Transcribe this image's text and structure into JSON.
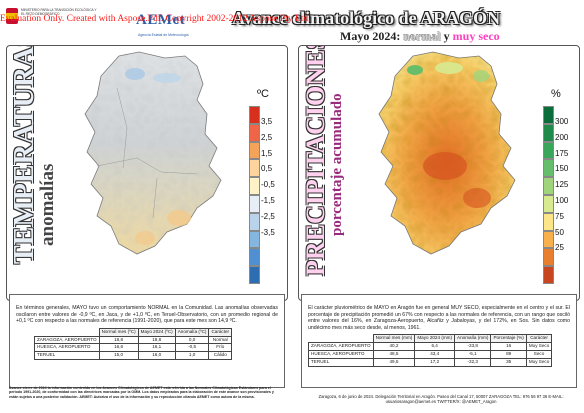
{
  "header": {
    "ministry": "MINISTERIO PARA LA TRANSICIÓN ECOLÓGICA Y EL RETO DEMOGRÁFICO",
    "aemet_logo": "AEMet",
    "aemet_subtitle": "Agencia Estatal de Meteorología",
    "watermark": "Evaluation Only. Created with Aspose.Pdf. Copyright 2002-2012 Aspose Pty Ltd.",
    "title": "Avance climatológico de ARAGÓN",
    "subtitle_prefix": "Mayo 2024:",
    "subtitle_normal": "normal",
    "subtitle_y": "y",
    "subtitle_dry": "muy seco"
  },
  "temperature": {
    "title_big": "TEMPERATURAS",
    "title_small": "anomalías",
    "unit": "ºC",
    "legend_ticks": [
      "3,5",
      "2,5",
      "1,5",
      "0,5",
      "-0,5",
      "-1,5",
      "-2,5",
      "-3,5"
    ],
    "legend_colors": [
      "#d7301f",
      "#ef6548",
      "#f4a35b",
      "#fdd49e",
      "#fff2c6",
      "#e7eef5",
      "#b9d4ea",
      "#85b6e0",
      "#4f8fd2",
      "#2f6db3"
    ],
    "paragraph": "En términos generales, MAYO tuvo un comportamiento NORMAL en la Comunidad. Las anomalías observadas oscilaron entre valores de -0,9 ºC, en Jaca, y de +1,0 ºC, en Teruel-Observatorio, con un promedio regional de +0,1 ºC con respecto a las normales de referencia (1991-2020), que para este mes son 14,9 ºC.",
    "table": {
      "headers": [
        "",
        "Normal mes (ºC)",
        "Mayo 2024 (ºC)",
        "Anomalía (ºC)",
        "Carácter"
      ],
      "rows": [
        [
          "ZARAGOZA, AEROPUERTO",
          "18,8",
          "18,8",
          "0,0",
          "Normal"
        ],
        [
          "HUESCA, AEROPUERTO",
          "16,6",
          "16,1",
          "-0,5",
          "Frío"
        ],
        [
          "TERUEL",
          "15,0",
          "16,0",
          "1,0",
          "Cálido"
        ]
      ]
    }
  },
  "precipitation": {
    "title_big": "PRECIPITACIONES",
    "title_small": "porcentaje acumulado",
    "unit": "%",
    "legend_ticks": [
      "300",
      "200",
      "175",
      "150",
      "125",
      "100",
      "75",
      "50",
      "25"
    ],
    "legend_colors": [
      "#0b6e3a",
      "#1f8a4a",
      "#3aa65a",
      "#67be6a",
      "#9fd47c",
      "#d7ea90",
      "#fde68a",
      "#f7b04b",
      "#e87f2f",
      "#c8461f"
    ],
    "paragraph": "El carácter pluviométrico de MAYO en Aragón fue en general MUY SECO, especialmente en el centro y el sur. El porcentaje de precipitación promedió un 67% con respecto a las normales de referencia, con un rango que osciló entre valores del 16%, en Zaragoza-Aeropuerto, Alcañiz y Jabaloyas, y del 172%, en Sos. Sin datos como undécimo mes más seco desde, al menos, 1961.",
    "table": {
      "headers": [
        "",
        "Normal mes (mm)",
        "Mayo 2024 (mm)",
        "Anomalía (mm)",
        "Porcentaje (%)",
        "Carácter"
      ],
      "rows": [
        [
          "ZARAGOZA, AEROPUERTO",
          "40,2",
          "6,4",
          "-33,8",
          "16",
          "Muy Seco"
        ],
        [
          "HUESCA, AEROPUERTO",
          "48,5",
          "43,4",
          "-5,1",
          "89",
          "Seco"
        ],
        [
          "TERUEL",
          "49,5",
          "17,2",
          "-32,3",
          "35",
          "Muy Seco"
        ]
      ]
    }
  },
  "footer": {
    "left": "Avance cierre de 2024 la información contenida en los Avances Climatológicos de AEMET está referida a las Normales Climatológicas Estándares para el periodo 1991-2020, de conformidad con las directrices marcadas por la OMM. Los datos empleados para la elaboración de este avance son provisionales y están sujetos a una posterior validación. AEMET: Autoriza el uso de la información y su reproducción citando AEMET como autora de la misma.",
    "right": "Zaragoza, 6 de junio de 2024. Delegación Territorial en Aragón. Paseo del Canal 17, 50007 ZARAGOZA TEL: 976 56 97 36 E-MAIL: usuariosaragon@aemet.es TWITTER/X: @AEMET_Aragon"
  }
}
